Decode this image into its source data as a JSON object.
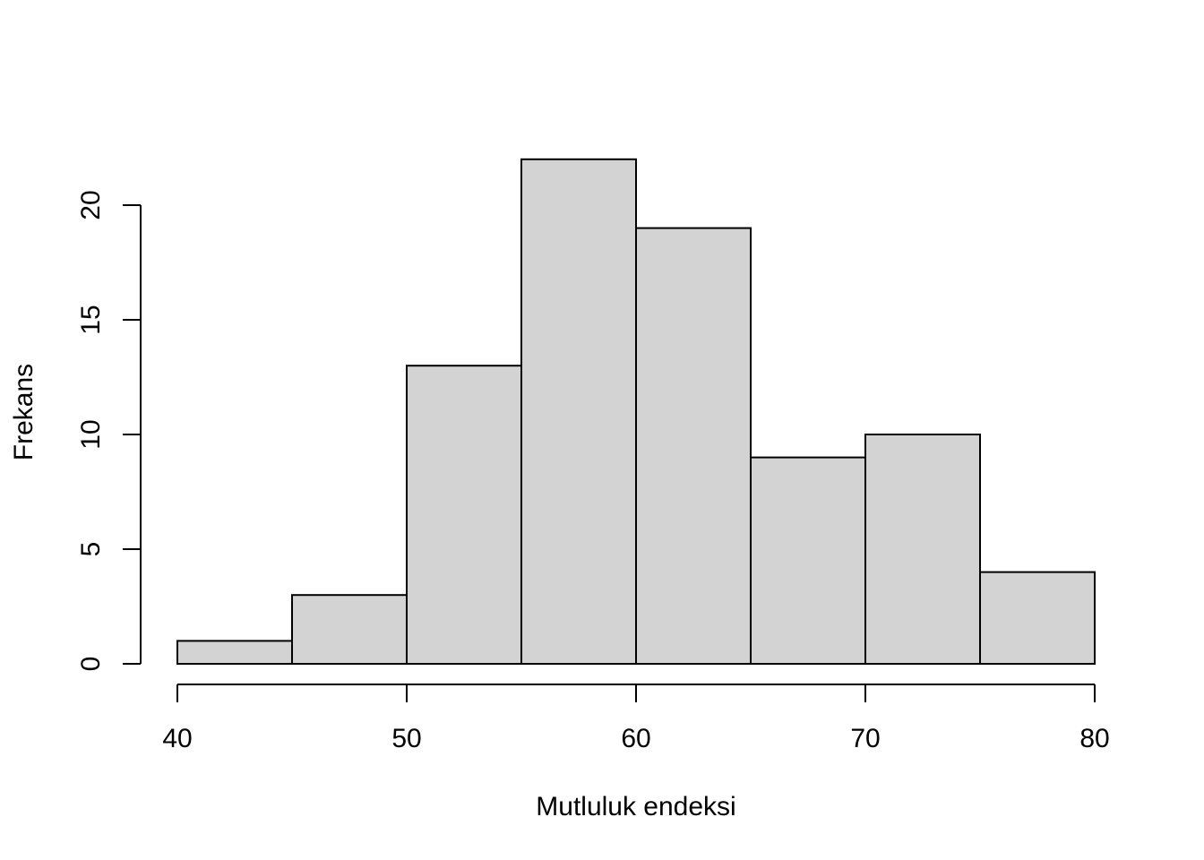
{
  "chart_data": {
    "type": "bar",
    "title": "",
    "xlabel": "Mutluluk endeksi",
    "ylabel": "Frekans",
    "bins": [
      {
        "start": 40,
        "end": 45,
        "count": 1
      },
      {
        "start": 45,
        "end": 50,
        "count": 3
      },
      {
        "start": 50,
        "end": 55,
        "count": 13
      },
      {
        "start": 55,
        "end": 60,
        "count": 22
      },
      {
        "start": 60,
        "end": 65,
        "count": 19
      },
      {
        "start": 65,
        "end": 70,
        "count": 9
      },
      {
        "start": 70,
        "end": 75,
        "count": 10
      },
      {
        "start": 75,
        "end": 80,
        "count": 4
      }
    ],
    "xlim": [
      40,
      80
    ],
    "ylim": [
      0,
      22
    ],
    "x_ticks": [
      "40",
      "50",
      "60",
      "70",
      "80"
    ],
    "y_ticks": [
      "0",
      "5",
      "10",
      "15",
      "20"
    ],
    "bar_color": "#d3d3d3",
    "bar_edge_color": "#000000",
    "grid": false,
    "legend": "none"
  }
}
